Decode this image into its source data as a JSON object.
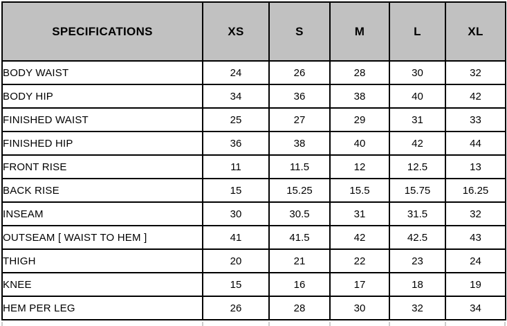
{
  "table": {
    "header": {
      "spec_label": "SPECIFICATIONS",
      "sizes": [
        "XS",
        "S",
        "M",
        "L",
        "XL"
      ]
    },
    "rows": [
      {
        "label": "BODY WAIST",
        "values": [
          "24",
          "26",
          "28",
          "30",
          "32"
        ]
      },
      {
        "label": "BODY HIP",
        "values": [
          "34",
          "36",
          "38",
          "40",
          "42"
        ]
      },
      {
        "label": "FINISHED WAIST",
        "values": [
          "25",
          "27",
          "29",
          "31",
          "33"
        ]
      },
      {
        "label": "FINISHED HIP",
        "values": [
          "36",
          "38",
          "40",
          "42",
          "44"
        ]
      },
      {
        "label": "FRONT RISE",
        "values": [
          "11",
          "11.5",
          "12",
          "12.5",
          "13"
        ]
      },
      {
        "label": "BACK RISE",
        "values": [
          "15",
          "15.25",
          "15.5",
          "15.75",
          "16.25"
        ]
      },
      {
        "label": "INSEAM",
        "values": [
          "30",
          "30.5",
          "31",
          "31.5",
          "32"
        ]
      },
      {
        "label": "OUTSEAM [ WAIST TO HEM ]",
        "values": [
          "41",
          "41.5",
          "42",
          "42.5",
          "43"
        ]
      },
      {
        "label": "THIGH",
        "values": [
          "20",
          "21",
          "22",
          "23",
          "24"
        ]
      },
      {
        "label": "KNEE",
        "values": [
          "15",
          "16",
          "17",
          "18",
          "19"
        ]
      },
      {
        "label": "HEM PER LEG",
        "values": [
          "26",
          "28",
          "30",
          "32",
          "34"
        ]
      }
    ],
    "colors": {
      "header_bg": "#c1c1c1",
      "grid_border": "#000000",
      "cropped_grid_stub": "#cccccc",
      "background": "#ffffff"
    }
  }
}
